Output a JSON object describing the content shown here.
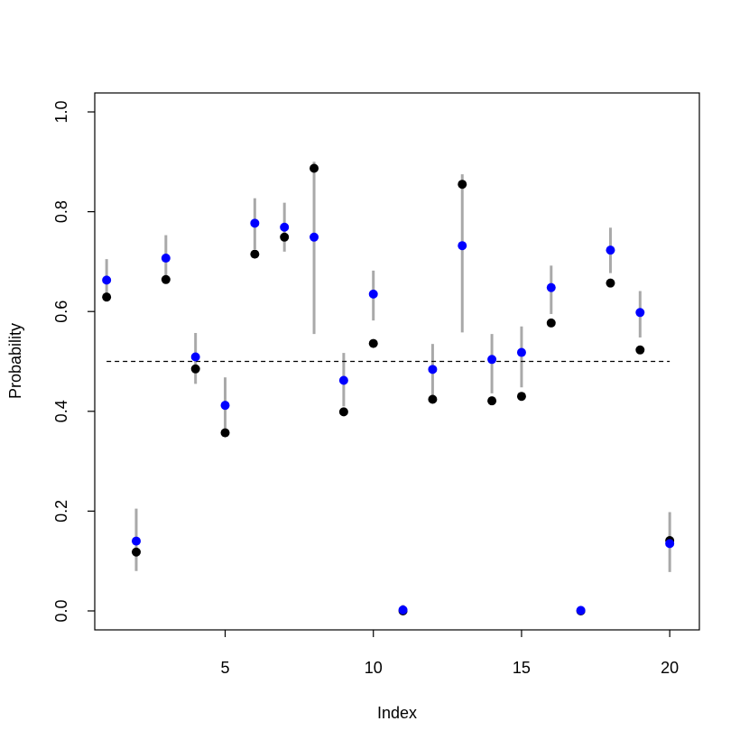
{
  "chart_data": {
    "type": "scatter",
    "title": "",
    "xlabel": "Index",
    "ylabel": "Probability",
    "xlim": [
      0.6,
      21.0
    ],
    "ylim": [
      -0.038,
      1.038
    ],
    "x_ticks": [
      5,
      10,
      15,
      20
    ],
    "y_ticks": [
      0.0,
      0.2,
      0.4,
      0.6,
      0.8,
      1.0
    ],
    "x_tick_labels": [
      "5",
      "10",
      "15",
      "20"
    ],
    "y_tick_labels": [
      "0.0",
      "0.2",
      "0.4",
      "0.6",
      "0.8",
      "1.0"
    ],
    "reference_line": {
      "y": 0.5,
      "x_from": 1,
      "x_to": 20,
      "style": "dashed"
    },
    "colors": {
      "interval": "#a9a9a9",
      "series_black": "#000000",
      "series_blue": "#0000ff",
      "reference": "#000000"
    },
    "x": [
      1,
      2,
      3,
      4,
      5,
      6,
      7,
      8,
      9,
      10,
      11,
      12,
      13,
      14,
      15,
      16,
      17,
      18,
      19,
      20
    ],
    "intervals": [
      [
        0.62,
        0.705
      ],
      [
        0.08,
        0.205
      ],
      [
        0.66,
        0.753
      ],
      [
        0.455,
        0.557
      ],
      [
        0.36,
        0.468
      ],
      [
        0.725,
        0.827
      ],
      [
        0.72,
        0.818
      ],
      [
        0.555,
        0.9
      ],
      [
        0.41,
        0.517
      ],
      [
        0.582,
        0.682
      ],
      [
        0.0,
        0.012
      ],
      [
        0.43,
        0.535
      ],
      [
        0.558,
        0.875
      ],
      [
        0.436,
        0.555
      ],
      [
        0.448,
        0.57
      ],
      [
        0.595,
        0.692
      ],
      [
        0.0,
        0.004
      ],
      [
        0.677,
        0.768
      ],
      [
        0.548,
        0.641
      ],
      [
        0.078,
        0.198
      ]
    ],
    "series": [
      {
        "color": "#000000",
        "values": [
          0.629,
          0.118,
          0.664,
          0.485,
          0.357,
          0.715,
          0.749,
          0.887,
          0.399,
          0.536,
          0.0,
          0.424,
          0.855,
          0.421,
          0.43,
          0.577,
          0.0,
          0.657,
          0.523,
          0.141
        ]
      },
      {
        "color": "#0000ff",
        "values": [
          0.663,
          0.14,
          0.707,
          0.509,
          0.412,
          0.777,
          0.769,
          0.749,
          0.462,
          0.635,
          0.002,
          0.484,
          0.732,
          0.504,
          0.518,
          0.648,
          0.001,
          0.723,
          0.598,
          0.135
        ]
      }
    ]
  }
}
